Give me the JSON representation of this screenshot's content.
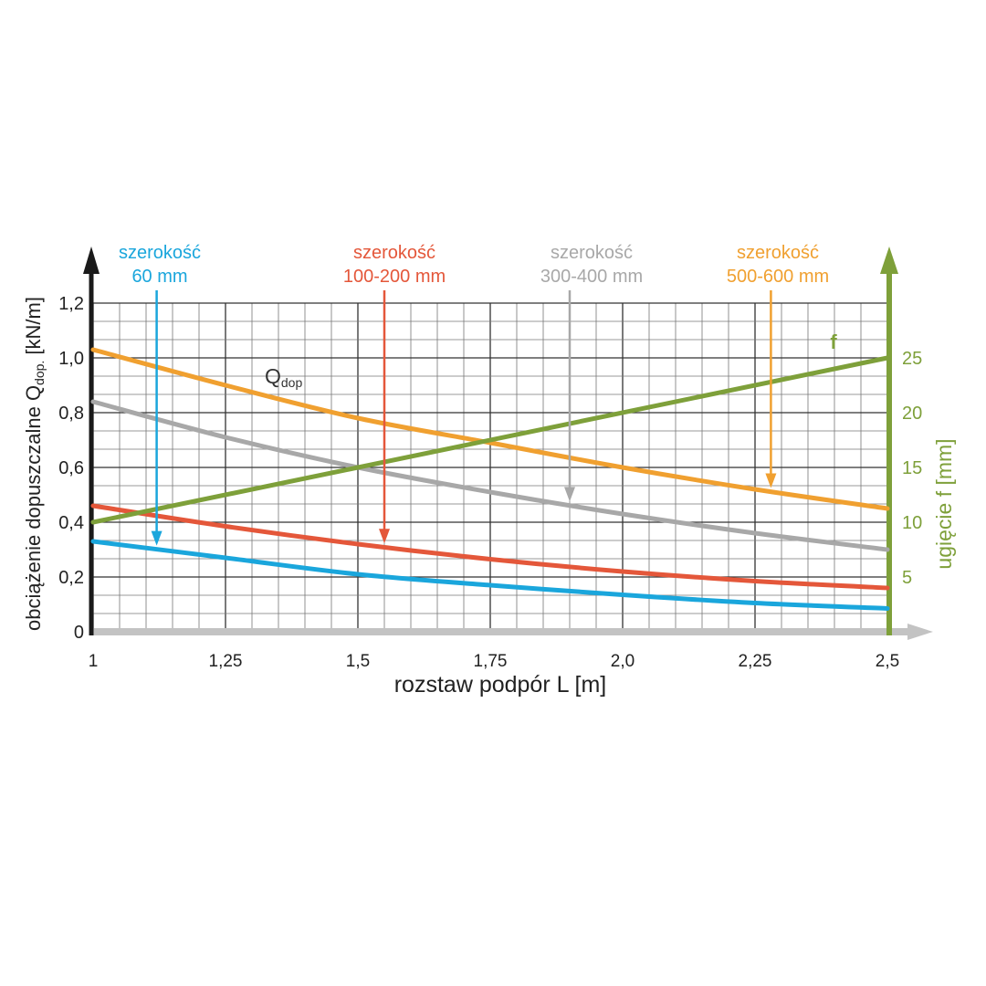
{
  "chart_data": {
    "type": "line",
    "xlabel": "rozstaw podpór L [m]",
    "ylabel_left": "obciążenie dopuszczalne Q",
    "ylabel_left_sub": "dop.",
    "ylabel_left_unit": " [kN/m]",
    "ylabel_right": "ugięcie f [mm]",
    "xlim": [
      1,
      2.5
    ],
    "ylim_left": [
      0,
      1.2
    ],
    "ylim_right": [
      0,
      30
    ],
    "x_ticks": [
      {
        "value": 1,
        "label": "1"
      },
      {
        "value": 1.25,
        "label": "1,25"
      },
      {
        "value": 1.5,
        "label": "1,5"
      },
      {
        "value": 1.75,
        "label": "1,75"
      },
      {
        "value": 2.0,
        "label": "2,0"
      },
      {
        "value": 2.25,
        "label": "2,25"
      },
      {
        "value": 2.5,
        "label": "2,5"
      }
    ],
    "y_left_ticks": [
      {
        "value": 0,
        "label": "0"
      },
      {
        "value": 0.2,
        "label": "0,2"
      },
      {
        "value": 0.4,
        "label": "0,4"
      },
      {
        "value": 0.6,
        "label": "0,6"
      },
      {
        "value": 0.8,
        "label": "0,8"
      },
      {
        "value": 1.0,
        "label": "1,0"
      },
      {
        "value": 1.2,
        "label": "1,2"
      }
    ],
    "y_right_ticks": [
      {
        "value": 5,
        "label": "5"
      },
      {
        "value": 10,
        "label": "10"
      },
      {
        "value": 15,
        "label": "15"
      },
      {
        "value": 20,
        "label": "20"
      },
      {
        "value": 25,
        "label": "25"
      }
    ],
    "grid": true,
    "annotations": {
      "q_label": "Q",
      "q_label_sub": "dop",
      "f_label": "f"
    },
    "series": [
      {
        "name_line1": "szerokość",
        "name_line2": "60 mm",
        "axis": "left",
        "color": "#1aa6dc",
        "arrow_x": 1.12,
        "arrow_to_y": 0.33,
        "x": [
          1.0,
          1.25,
          1.5,
          1.75,
          2.0,
          2.25,
          2.5
        ],
        "values": [
          0.33,
          0.27,
          0.21,
          0.17,
          0.135,
          0.105,
          0.085
        ]
      },
      {
        "name_line1": "szerokość",
        "name_line2": "100-200 mm",
        "axis": "left",
        "color": "#e4573a",
        "arrow_x": 1.55,
        "arrow_to_y": 0.33,
        "x": [
          1.0,
          1.25,
          1.5,
          1.75,
          2.0,
          2.25,
          2.5
        ],
        "values": [
          0.46,
          0.385,
          0.32,
          0.265,
          0.22,
          0.185,
          0.16
        ]
      },
      {
        "name_line1": "szerokość",
        "name_line2": "300-400 mm",
        "axis": "left",
        "color": "#a8a8a8",
        "arrow_x": 1.9,
        "arrow_to_y": 0.48,
        "x": [
          1.0,
          1.25,
          1.5,
          1.75,
          2.0,
          2.25,
          2.5
        ],
        "values": [
          0.84,
          0.71,
          0.6,
          0.51,
          0.43,
          0.36,
          0.3
        ]
      },
      {
        "name_line1": "szerokość",
        "name_line2": "500-600 mm",
        "axis": "left",
        "color": "#f0a030",
        "arrow_x": 2.28,
        "arrow_to_y": 0.54,
        "x": [
          1.0,
          1.25,
          1.5,
          1.75,
          2.0,
          2.25,
          2.5
        ],
        "values": [
          1.03,
          0.9,
          0.78,
          0.69,
          0.6,
          0.52,
          0.45
        ]
      },
      {
        "name_line1": "f",
        "axis": "right",
        "color": "#7ea03a",
        "x": [
          1.0,
          2.5
        ],
        "values": [
          10,
          25
        ]
      }
    ]
  }
}
